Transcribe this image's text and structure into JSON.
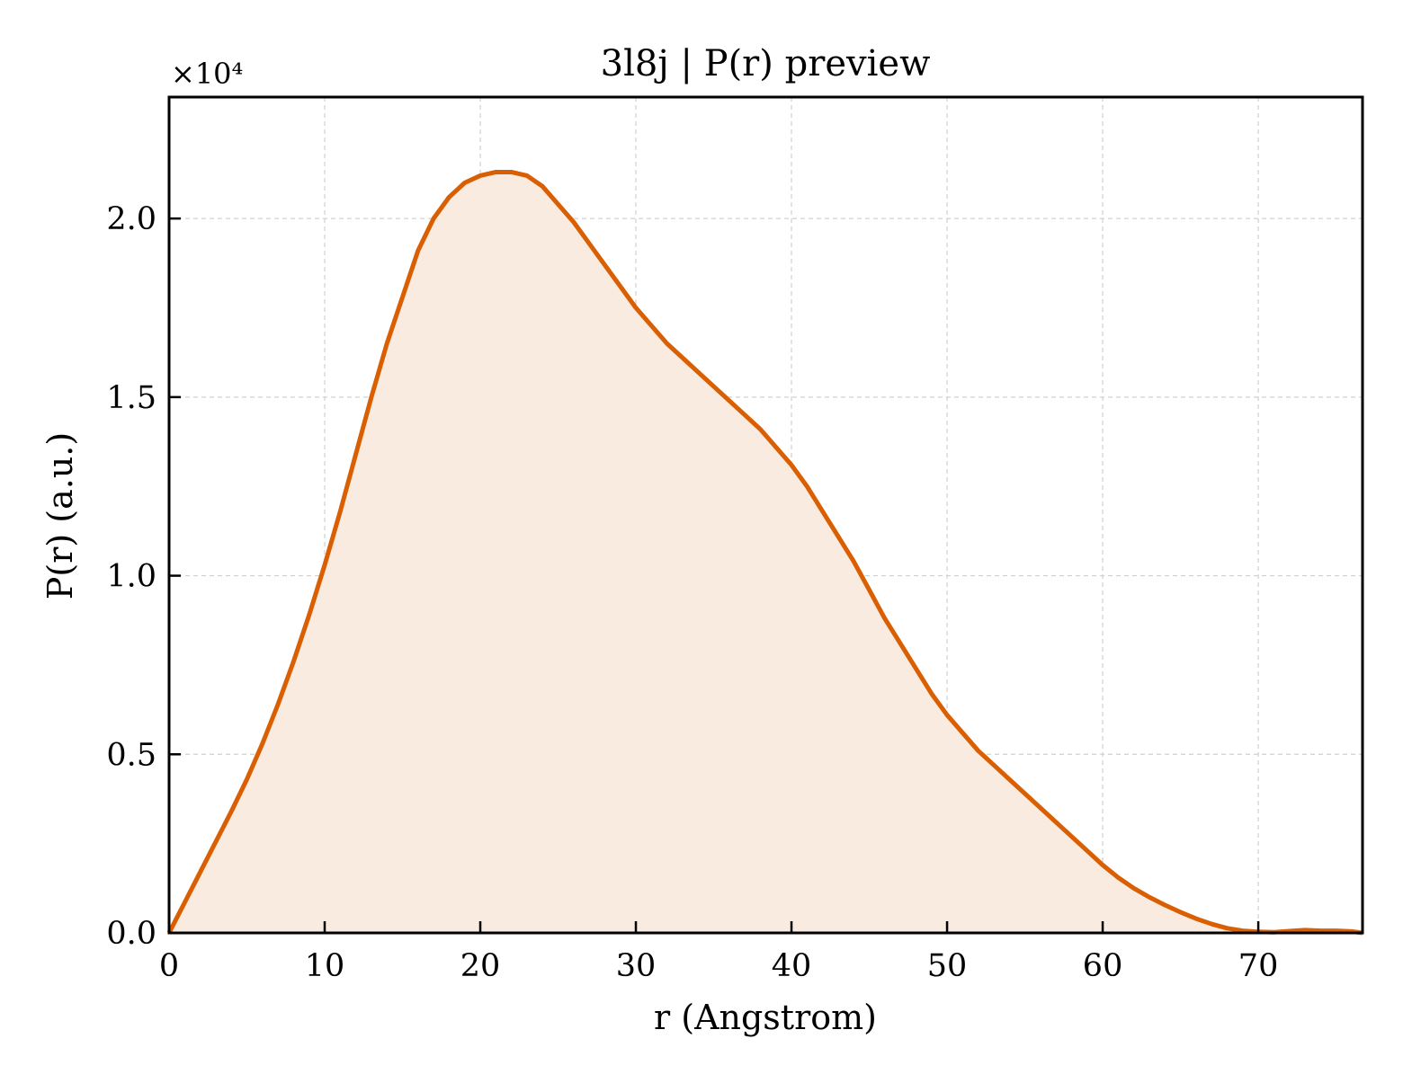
{
  "chart_data": {
    "type": "area",
    "title": "3l8j | P(r) preview",
    "xlabel": "r (Angstrom)",
    "ylabel": "P(r) (a.u.)",
    "y_offset_label": "×10⁴",
    "xlim": [
      0,
      76.7
    ],
    "ylim": [
      0,
      2.34
    ],
    "x_ticks": [
      0,
      10,
      20,
      30,
      40,
      50,
      60,
      70
    ],
    "x_tick_labels": [
      "0",
      "10",
      "20",
      "30",
      "40",
      "50",
      "60",
      "70"
    ],
    "y_ticks": [
      0,
      0.5,
      1.0,
      1.5,
      2.0
    ],
    "y_tick_labels": [
      "0.0",
      "0.5",
      "1.0",
      "1.5",
      "2.0"
    ],
    "grid": true,
    "line_color": "#d95f02",
    "fill_color": "#f9ebe0",
    "series": [
      {
        "x": [
          0,
          1,
          2,
          3,
          4,
          5,
          6,
          7,
          8,
          9,
          10,
          11,
          12,
          13,
          14,
          15,
          16,
          17,
          18,
          19,
          20,
          21,
          22,
          23,
          24,
          25,
          26,
          27,
          28,
          29,
          30,
          31,
          32,
          33,
          34,
          35,
          36,
          37,
          38,
          39,
          40,
          41,
          42,
          43,
          44,
          45,
          46,
          47,
          48,
          49,
          50,
          51,
          52,
          53,
          54,
          55,
          56,
          57,
          58,
          59,
          60,
          61,
          62,
          63,
          64,
          65,
          66,
          67,
          68,
          69,
          70,
          71,
          72,
          73,
          74,
          75,
          76,
          76.7
        ],
        "y": [
          0,
          0.085,
          0.17,
          0.255,
          0.34,
          0.43,
          0.53,
          0.64,
          0.76,
          0.89,
          1.03,
          1.18,
          1.34,
          1.5,
          1.65,
          1.78,
          1.91,
          2.0,
          2.06,
          2.1,
          2.12,
          2.13,
          2.13,
          2.12,
          2.09,
          2.04,
          1.99,
          1.93,
          1.87,
          1.81,
          1.75,
          1.7,
          1.65,
          1.61,
          1.57,
          1.53,
          1.49,
          1.45,
          1.41,
          1.36,
          1.31,
          1.25,
          1.18,
          1.11,
          1.04,
          0.96,
          0.88,
          0.81,
          0.74,
          0.67,
          0.61,
          0.56,
          0.51,
          0.47,
          0.43,
          0.39,
          0.35,
          0.31,
          0.27,
          0.23,
          0.19,
          0.155,
          0.125,
          0.1,
          0.078,
          0.058,
          0.04,
          0.025,
          0.013,
          0.006,
          0.003,
          0.002,
          0.005,
          0.008,
          0.006,
          0.006,
          0.004,
          0.0
        ]
      }
    ]
  }
}
